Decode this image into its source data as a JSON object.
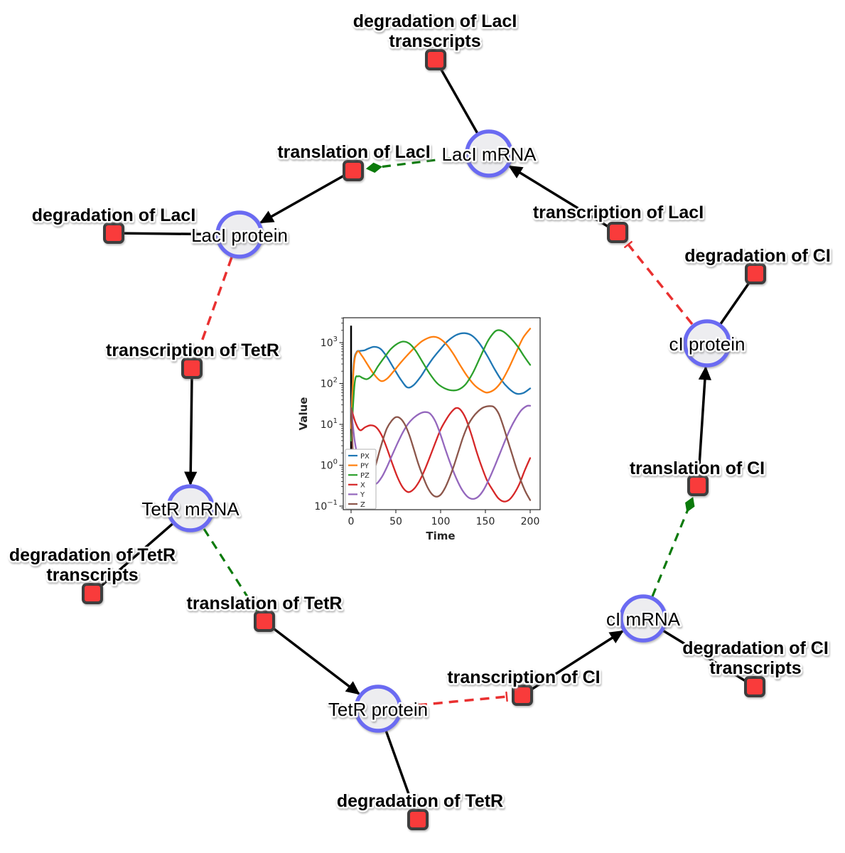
{
  "page": {
    "background": "#ffffff"
  },
  "network": {
    "colors": {
      "species_fill": "#ededf0",
      "species_border": "#6a6af2",
      "reaction_fill": "#f93b3b",
      "reaction_border": "#3d3d3d",
      "edge_black": "#000000",
      "catalysis_edge_green": "#0b7a0b",
      "inhibition_edge_red": "#e93030"
    },
    "species": [
      {
        "label": "LacI mRNA"
      },
      {
        "label": "LacI protein"
      },
      {
        "label": "TetR mRNA"
      },
      {
        "label": "TetR protein"
      },
      {
        "label": "cI mRNA"
      },
      {
        "label": "cI protein"
      }
    ],
    "reactions": [
      {
        "label_lines": [
          "degradation of LacI",
          "transcripts"
        ]
      },
      {
        "label_lines": [
          "translation of LacI"
        ]
      },
      {
        "label_lines": [
          "transcription of LacI"
        ]
      },
      {
        "label_lines": [
          "degradation of LacI"
        ]
      },
      {
        "label_lines": [
          "transcription of TetR"
        ]
      },
      {
        "label_lines": [
          "degradation of TetR",
          "transcripts"
        ]
      },
      {
        "label_lines": [
          "translation of TetR"
        ]
      },
      {
        "label_lines": [
          "degradation of TetR"
        ]
      },
      {
        "label_lines": [
          "transcription of CI"
        ]
      },
      {
        "label_lines": [
          "degradation of CI",
          "transcripts"
        ]
      },
      {
        "label_lines": [
          "translation of CI"
        ]
      },
      {
        "label_lines": [
          "degradation of CI"
        ]
      }
    ]
  },
  "chart_data": {
    "type": "line",
    "title": "",
    "xlabel": "Time",
    "ylabel": "Value",
    "yscale": "log",
    "xlim": [
      -9,
      211
    ],
    "ylim": [
      0.085,
      4060
    ],
    "x_ticks": [
      0,
      50,
      100,
      150,
      200
    ],
    "y_ticks_exp": [
      -1,
      0,
      1,
      2,
      3
    ],
    "grid": false,
    "legend_position": "lower left",
    "vline": {
      "x": 0,
      "y0": 0.085,
      "y1": 2600,
      "color": "#000000"
    },
    "series": [
      {
        "name": "PX",
        "color": "#1f77b4",
        "points": [
          [
            0,
            20
          ],
          [
            3,
            300
          ],
          [
            6,
            580
          ],
          [
            10,
            625
          ],
          [
            15,
            650
          ],
          [
            20,
            725
          ],
          [
            26,
            790
          ],
          [
            33,
            700
          ],
          [
            40,
            450
          ],
          [
            48,
            230
          ],
          [
            56,
            120
          ],
          [
            63,
            80
          ],
          [
            70,
            92
          ],
          [
            78,
            150
          ],
          [
            85,
            260
          ],
          [
            92,
            430
          ],
          [
            100,
            700
          ],
          [
            108,
            1100
          ],
          [
            118,
            1560
          ],
          [
            127,
            1700
          ],
          [
            135,
            1480
          ],
          [
            143,
            980
          ],
          [
            152,
            480
          ],
          [
            160,
            230
          ],
          [
            168,
            120
          ],
          [
            176,
            76
          ],
          [
            184,
            57
          ],
          [
            192,
            58
          ],
          [
            200,
            76
          ]
        ]
      },
      {
        "name": "PY",
        "color": "#ff7f0e",
        "points": [
          [
            0,
            8
          ],
          [
            3,
            250
          ],
          [
            7,
            600
          ],
          [
            12,
            480
          ],
          [
            18,
            300
          ],
          [
            25,
            175
          ],
          [
            33,
            116
          ],
          [
            40,
            130
          ],
          [
            48,
            205
          ],
          [
            56,
            335
          ],
          [
            64,
            525
          ],
          [
            72,
            790
          ],
          [
            80,
            1110
          ],
          [
            90,
            1380
          ],
          [
            98,
            1290
          ],
          [
            106,
            930
          ],
          [
            114,
            540
          ],
          [
            122,
            275
          ],
          [
            130,
            148
          ],
          [
            138,
            90
          ],
          [
            146,
            67
          ],
          [
            152,
            60
          ],
          [
            160,
            71
          ],
          [
            168,
            112
          ],
          [
            176,
            235
          ],
          [
            184,
            560
          ],
          [
            192,
            1300
          ],
          [
            200,
            2200
          ]
        ]
      },
      {
        "name": "PZ",
        "color": "#2ca02c",
        "points": [
          [
            0,
            4
          ],
          [
            4,
            100
          ],
          [
            8,
            150
          ],
          [
            13,
            136
          ],
          [
            18,
            128
          ],
          [
            24,
            162
          ],
          [
            30,
            262
          ],
          [
            37,
            430
          ],
          [
            44,
            680
          ],
          [
            51,
            920
          ],
          [
            58,
            1060
          ],
          [
            65,
            950
          ],
          [
            72,
            640
          ],
          [
            80,
            330
          ],
          [
            88,
            172
          ],
          [
            96,
            102
          ],
          [
            104,
            77
          ],
          [
            112,
            68
          ],
          [
            120,
            71
          ],
          [
            128,
            96
          ],
          [
            136,
            182
          ],
          [
            144,
            430
          ],
          [
            152,
            1020
          ],
          [
            158,
            1620
          ],
          [
            163,
            2000
          ],
          [
            170,
            1860
          ],
          [
            178,
            1310
          ],
          [
            186,
            810
          ],
          [
            193,
            470
          ],
          [
            200,
            285
          ]
        ]
      },
      {
        "name": "X",
        "color": "#d62728",
        "points": [
          [
            0,
            25
          ],
          [
            5,
            11
          ],
          [
            10,
            7.2
          ],
          [
            16,
            8.6
          ],
          [
            22,
            9.5
          ],
          [
            28,
            8.5
          ],
          [
            34,
            5.5
          ],
          [
            40,
            2.6
          ],
          [
            46,
            1.1
          ],
          [
            52,
            0.5
          ],
          [
            58,
            0.28
          ],
          [
            64,
            0.22
          ],
          [
            70,
            0.26
          ],
          [
            76,
            0.4
          ],
          [
            82,
            0.75
          ],
          [
            88,
            1.6
          ],
          [
            94,
            3.5
          ],
          [
            100,
            7.5
          ],
          [
            107,
            14
          ],
          [
            112,
            20
          ],
          [
            117,
            25
          ],
          [
            122,
            23
          ],
          [
            128,
            14
          ],
          [
            134,
            6
          ],
          [
            140,
            2.2
          ],
          [
            146,
            0.9
          ],
          [
            152,
            0.42
          ],
          [
            158,
            0.25
          ],
          [
            164,
            0.16
          ],
          [
            170,
            0.13
          ],
          [
            176,
            0.14
          ],
          [
            182,
            0.2
          ],
          [
            188,
            0.35
          ],
          [
            194,
            0.75
          ],
          [
            200,
            1.5
          ]
        ]
      },
      {
        "name": "Y",
        "color": "#9467bd",
        "points": [
          [
            0,
            25
          ],
          [
            4,
            4
          ],
          [
            8,
            1.5
          ],
          [
            12,
            0.9
          ],
          [
            16,
            0.65
          ],
          [
            20,
            0.5
          ],
          [
            24,
            0.4
          ],
          [
            28,
            0.35
          ],
          [
            34,
            0.5
          ],
          [
            40,
            0.9
          ],
          [
            46,
            1.8
          ],
          [
            52,
            3.5
          ],
          [
            58,
            6.5
          ],
          [
            64,
            10.5
          ],
          [
            70,
            14.5
          ],
          [
            76,
            18
          ],
          [
            82,
            20
          ],
          [
            88,
            18.5
          ],
          [
            94,
            12
          ],
          [
            100,
            5.5
          ],
          [
            106,
            2.2
          ],
          [
            112,
            0.95
          ],
          [
            118,
            0.45
          ],
          [
            124,
            0.25
          ],
          [
            130,
            0.17
          ],
          [
            136,
            0.15
          ],
          [
            142,
            0.17
          ],
          [
            148,
            0.25
          ],
          [
            154,
            0.45
          ],
          [
            160,
            0.9
          ],
          [
            166,
            1.9
          ],
          [
            172,
            4
          ],
          [
            178,
            8
          ],
          [
            184,
            14
          ],
          [
            190,
            22
          ],
          [
            196,
            28
          ],
          [
            200,
            28.5
          ]
        ]
      },
      {
        "name": "Z",
        "color": "#8c564b",
        "points": [
          [
            0,
            25
          ],
          [
            2,
            2
          ],
          [
            4,
            0.3
          ],
          [
            6,
            0.09
          ],
          [
            8,
            0.07
          ],
          [
            12,
            0.09
          ],
          [
            16,
            0.15
          ],
          [
            20,
            0.28
          ],
          [
            24,
            0.55
          ],
          [
            28,
            1.1
          ],
          [
            32,
            2.3
          ],
          [
            36,
            4.5
          ],
          [
            40,
            8
          ],
          [
            45,
            12
          ],
          [
            50,
            15
          ],
          [
            55,
            14
          ],
          [
            60,
            10
          ],
          [
            65,
            5.5
          ],
          [
            70,
            2.5
          ],
          [
            75,
            1.1
          ],
          [
            80,
            0.55
          ],
          [
            85,
            0.3
          ],
          [
            90,
            0.2
          ],
          [
            95,
            0.17
          ],
          [
            100,
            0.19
          ],
          [
            105,
            0.28
          ],
          [
            110,
            0.5
          ],
          [
            115,
            1
          ],
          [
            120,
            2.2
          ],
          [
            125,
            4.8
          ],
          [
            130,
            9
          ],
          [
            136,
            15
          ],
          [
            142,
            21
          ],
          [
            148,
            26
          ],
          [
            155,
            28
          ],
          [
            160,
            26
          ],
          [
            165,
            18
          ],
          [
            170,
            9
          ],
          [
            175,
            4
          ],
          [
            180,
            1.8
          ],
          [
            185,
            0.8
          ],
          [
            190,
            0.4
          ],
          [
            195,
            0.22
          ],
          [
            200,
            0.14
          ]
        ]
      }
    ]
  }
}
